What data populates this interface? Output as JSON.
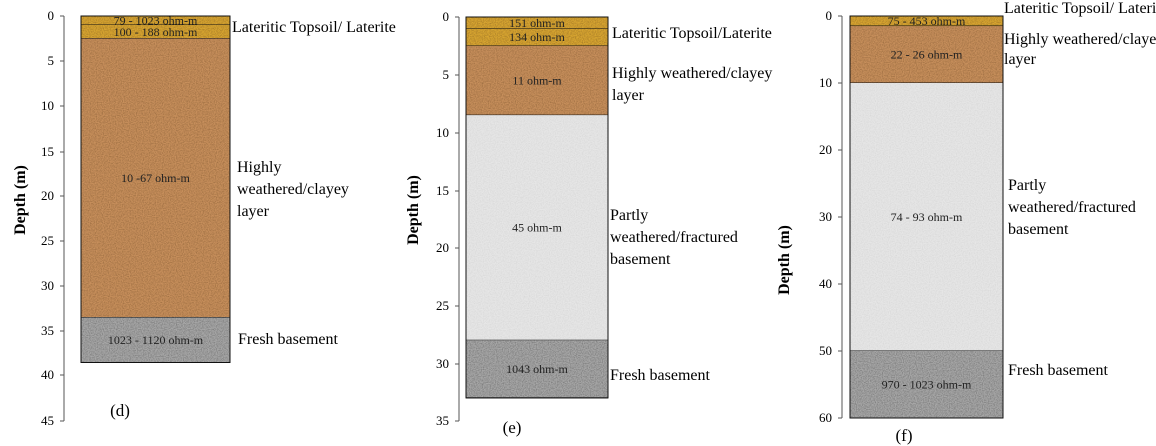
{
  "panels": [
    {
      "label": "(d)",
      "ylabel": "Depth (m)",
      "ticks": [
        0,
        5,
        10,
        15,
        20,
        25,
        30,
        35,
        40,
        45
      ],
      "ymax": 45,
      "bottom": 38.5,
      "layers": [
        {
          "top": 0,
          "bottom": 1.0,
          "resistivity": "79 - 1023 ohm-m",
          "material": "laterite",
          "description": ""
        },
        {
          "top": 1.0,
          "bottom": 2.5,
          "resistivity": "100 - 188 ohm-m",
          "material": "laterite",
          "description": "Lateritic Topsoil/ Laterite"
        },
        {
          "top": 2.5,
          "bottom": 33.5,
          "resistivity": "10 -67 ohm-m",
          "material": "clay",
          "description": "Highly weathered/clayey layer"
        },
        {
          "top": 33.5,
          "bottom": 38.5,
          "resistivity": "1023 - 1120 ohm-m",
          "material": "fresh",
          "description": "Fresh basement"
        }
      ]
    },
    {
      "label": "(e)",
      "ylabel": "Depth (m)",
      "ticks": [
        0,
        5,
        10,
        15,
        20,
        25,
        30,
        35
      ],
      "ymax": 35,
      "bottom": 33,
      "layers": [
        {
          "top": 0,
          "bottom": 1.0,
          "resistivity": "151 ohm-m",
          "material": "laterite",
          "description": ""
        },
        {
          "top": 1.0,
          "bottom": 2.5,
          "resistivity": "134 ohm-m",
          "material": "laterite",
          "description": "Lateritic Topsoil/Laterite"
        },
        {
          "top": 2.5,
          "bottom": 8.5,
          "resistivity": "11 ohm-m",
          "material": "clay",
          "description": "Highly weathered/clayey layer"
        },
        {
          "top": 8.5,
          "bottom": 28,
          "resistivity": "45 ohm-m",
          "material": "partly",
          "description": "Partly weathered/fractured basement"
        },
        {
          "top": 28,
          "bottom": 33,
          "resistivity": "1043 ohm-m",
          "material": "fresh",
          "description": "Fresh basement"
        }
      ]
    },
    {
      "label": "(f)",
      "ylabel": "Depth (m)",
      "ticks": [
        0,
        10,
        20,
        30,
        40,
        50,
        60
      ],
      "ymax": 60,
      "bottom": 60,
      "layers": [
        {
          "top": 0,
          "bottom": 1.5,
          "resistivity": "75 - 453 ohm-m",
          "material": "laterite",
          "description": "Lateritic Topsoil/ Laterite"
        },
        {
          "top": 1.5,
          "bottom": 10,
          "resistivity": "22 - 26 ohm-m",
          "material": "clay",
          "description": "Highly weathered/clayey layer"
        },
        {
          "top": 10,
          "bottom": 50,
          "resistivity": "74 - 93 ohm-m",
          "material": "partly",
          "description": "Partly weathered/fractured basement"
        },
        {
          "top": 50,
          "bottom": 60,
          "resistivity": "970 - 1023 ohm-m",
          "material": "fresh",
          "description": "Fresh basement"
        }
      ]
    }
  ],
  "colors": {
    "laterite": "#d7a531",
    "clay": "#c78f5c",
    "partly": "#e6e6e6",
    "fresh": "#a7a7a7",
    "border": "#111111"
  }
}
